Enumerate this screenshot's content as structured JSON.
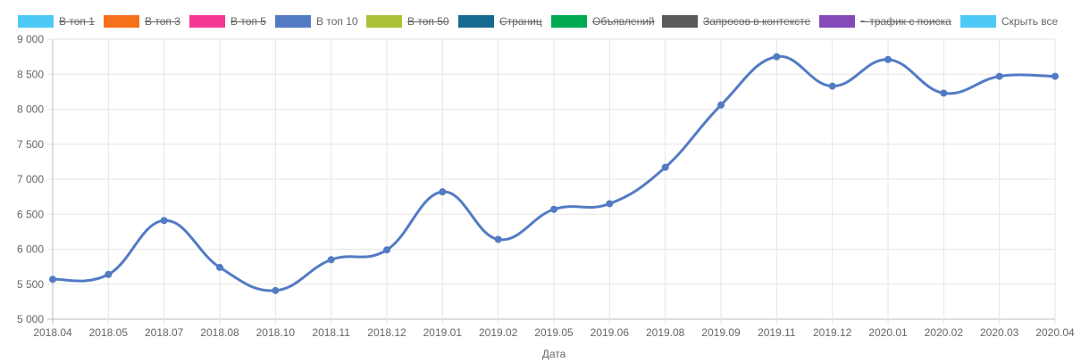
{
  "legend": [
    {
      "label": "В топ 1",
      "color": "#4dc9f6",
      "hidden": true
    },
    {
      "label": "В топ 3",
      "color": "#f67019",
      "hidden": true
    },
    {
      "label": "В топ 5",
      "color": "#f53794",
      "hidden": true
    },
    {
      "label": "В топ 10",
      "color": "#537bc4",
      "hidden": false
    },
    {
      "label": "В топ 50",
      "color": "#acc236",
      "hidden": true
    },
    {
      "label": "Страниц",
      "color": "#166a8f",
      "hidden": true
    },
    {
      "label": "Объявлений",
      "color": "#00a950",
      "hidden": true
    },
    {
      "label": "Запросов в контексте",
      "color": "#58595b",
      "hidden": true
    },
    {
      "label": "~ трафик с поиска",
      "color": "#8549ba",
      "hidden": true
    },
    {
      "label": "Скрыть все",
      "color": "#4dc9f6",
      "hidden": false
    }
  ],
  "chart_data": {
    "type": "line",
    "categories": [
      "2018.04",
      "2018.05",
      "2018.07",
      "2018.08",
      "2018.10",
      "2018.11",
      "2018.12",
      "2019.01",
      "2019.02",
      "2019.05",
      "2019.06",
      "2019.08",
      "2019.09",
      "2019.11",
      "2019.12",
      "2020.01",
      "2020.02",
      "2020.03",
      "2020.04"
    ],
    "series": [
      {
        "name": "В топ 10",
        "color": "#537bc4",
        "values": [
          5570,
          5640,
          6410,
          5740,
          5410,
          5850,
          5990,
          6820,
          6140,
          6570,
          6650,
          7170,
          8060,
          8750,
          8330,
          8710,
          8230,
          8470,
          8470
        ]
      }
    ],
    "ylim": [
      5000,
      9000
    ],
    "yticks": [
      "5 000",
      "5 500",
      "6 000",
      "6 500",
      "7 000",
      "7 500",
      "8 000",
      "8 500",
      "9 000"
    ],
    "xlabel": "Дата",
    "ylabel": "",
    "grid": true,
    "legend_position": "top"
  }
}
